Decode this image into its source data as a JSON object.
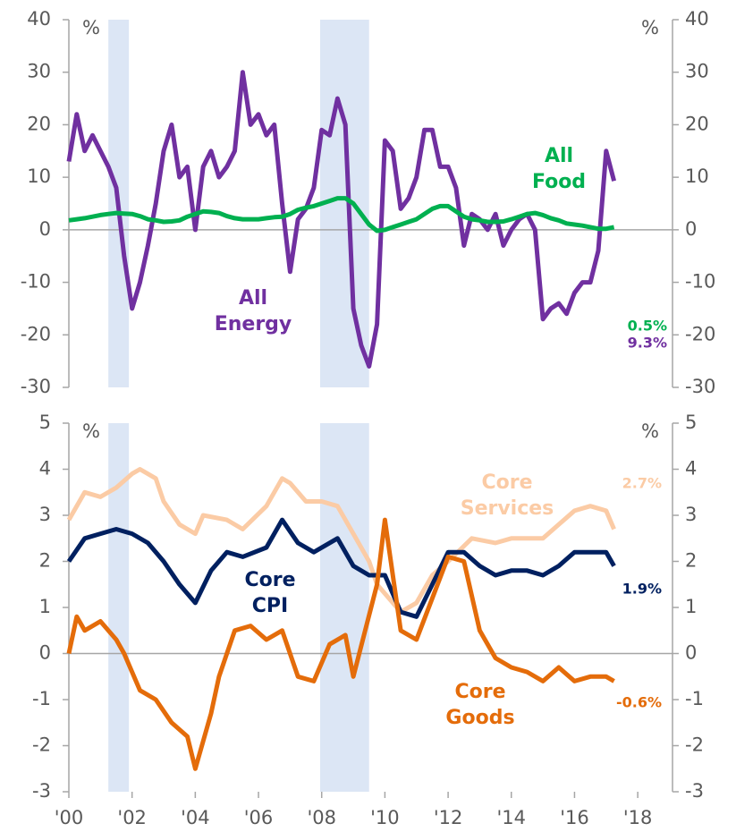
{
  "chart_data": [
    {
      "type": "line",
      "unit": "%",
      "xlim": [
        2000,
        2019.1
      ],
      "ylim": [
        -30,
        40
      ],
      "yticks": [
        -30,
        -20,
        -10,
        0,
        10,
        20,
        30,
        40
      ],
      "y2lim": [
        -30,
        40
      ],
      "y2ticks": [
        -30,
        -20,
        -10,
        0,
        10,
        20,
        30,
        40
      ],
      "shaded_ranges": [
        [
          2001.25,
          2001.9
        ],
        [
          2007.95,
          2009.5
        ]
      ],
      "series": [
        {
          "name": "All Energy",
          "color": "#7030a0",
          "x": [
            2000,
            2000.25,
            2000.5,
            2000.75,
            2001,
            2001.25,
            2001.5,
            2001.75,
            2002,
            2002.25,
            2002.5,
            2002.75,
            2003,
            2003.25,
            2003.5,
            2003.75,
            2004,
            2004.25,
            2004.5,
            2004.75,
            2005,
            2005.25,
            2005.5,
            2005.75,
            2006,
            2006.25,
            2006.5,
            2006.75,
            2007,
            2007.25,
            2007.5,
            2007.75,
            2008,
            2008.25,
            2008.5,
            2008.75,
            2009,
            2009.25,
            2009.5,
            2009.75,
            2010,
            2010.25,
            2010.5,
            2010.75,
            2011,
            2011.25,
            2011.5,
            2011.75,
            2012,
            2012.25,
            2012.5,
            2012.75,
            2013,
            2013.25,
            2013.5,
            2013.75,
            2014,
            2014.25,
            2014.5,
            2014.75,
            2015,
            2015.25,
            2015.5,
            2015.75,
            2016,
            2016.25,
            2016.5,
            2016.75,
            2017,
            2017.25
          ],
          "values": [
            13,
            22,
            15,
            18,
            15,
            12,
            8,
            -5,
            -15,
            -10,
            -3,
            5,
            15,
            20,
            10,
            12,
            0,
            12,
            15,
            10,
            12,
            15,
            30,
            20,
            22,
            18,
            20,
            5,
            -8,
            2,
            4,
            8,
            19,
            18,
            25,
            20,
            -15,
            -22,
            -26,
            -18,
            17,
            15,
            4,
            6,
            10,
            19,
            19,
            12,
            12,
            8,
            -3,
            3,
            2,
            0,
            3,
            -3,
            0,
            2,
            3,
            0,
            -17,
            -15,
            -14,
            -16,
            -12,
            -10,
            -10,
            -4,
            15,
            9.3
          ],
          "value_labels": [
            null,
            null,
            null,
            null,
            null,
            null,
            null,
            null,
            null,
            null,
            null,
            null,
            null,
            null,
            null,
            null,
            null,
            null,
            null,
            null,
            null,
            null,
            null,
            null,
            null,
            null,
            null,
            null,
            null,
            null,
            null,
            null,
            null,
            null,
            null,
            null,
            null,
            null,
            null,
            null,
            null,
            null,
            null,
            null,
            null,
            null,
            null,
            null,
            null,
            null,
            null,
            null,
            null,
            null,
            null,
            null,
            null,
            null,
            null,
            null,
            null,
            null,
            null,
            null,
            null,
            null,
            null,
            null,
            null,
            "9.3%"
          ]
        },
        {
          "name": "All Food",
          "color": "#00b050",
          "x": [
            2000,
            2000.25,
            2000.5,
            2000.75,
            2001,
            2001.25,
            2001.5,
            2001.75,
            2002,
            2002.25,
            2002.5,
            2002.75,
            2003,
            2003.25,
            2003.5,
            2003.75,
            2004,
            2004.25,
            2004.5,
            2004.75,
            2005,
            2005.25,
            2005.5,
            2005.75,
            2006,
            2006.25,
            2006.5,
            2006.75,
            2007,
            2007.25,
            2007.5,
            2007.75,
            2008,
            2008.25,
            2008.5,
            2008.75,
            2009,
            2009.25,
            2009.5,
            2009.75,
            2010,
            2010.25,
            2010.5,
            2010.75,
            2011,
            2011.25,
            2011.5,
            2011.75,
            2012,
            2012.25,
            2012.5,
            2012.75,
            2013,
            2013.25,
            2013.5,
            2013.75,
            2014,
            2014.25,
            2014.5,
            2014.75,
            2015,
            2015.25,
            2015.5,
            2015.75,
            2016,
            2016.25,
            2016.5,
            2016.75,
            2017,
            2017.25
          ],
          "values": [
            1.8,
            2.0,
            2.2,
            2.5,
            2.8,
            3.0,
            3.2,
            3.1,
            3.0,
            2.6,
            2.0,
            1.8,
            1.5,
            1.6,
            1.8,
            2.5,
            3.0,
            3.5,
            3.4,
            3.2,
            2.6,
            2.2,
            2.0,
            2.0,
            2.0,
            2.2,
            2.4,
            2.5,
            3.0,
            3.8,
            4.2,
            4.5,
            5.0,
            5.5,
            6.0,
            6.0,
            5.0,
            3.0,
            1.0,
            -0.2,
            0.0,
            0.5,
            1.0,
            1.5,
            2.0,
            3.0,
            4.0,
            4.5,
            4.5,
            3.5,
            2.5,
            2.0,
            1.8,
            1.5,
            1.5,
            1.6,
            2.0,
            2.5,
            3.0,
            3.2,
            2.8,
            2.2,
            1.8,
            1.2,
            1.0,
            0.8,
            0.5,
            0.2,
            0.2,
            0.5
          ],
          "value_labels": [
            null,
            null,
            null,
            null,
            null,
            null,
            null,
            null,
            null,
            null,
            null,
            null,
            null,
            null,
            null,
            null,
            null,
            null,
            null,
            null,
            null,
            null,
            null,
            null,
            null,
            null,
            null,
            null,
            null,
            null,
            null,
            null,
            null,
            null,
            null,
            null,
            null,
            null,
            null,
            null,
            null,
            null,
            null,
            null,
            null,
            null,
            null,
            null,
            null,
            null,
            null,
            null,
            null,
            null,
            null,
            null,
            null,
            null,
            null,
            null,
            null,
            null,
            null,
            null,
            null,
            null,
            null,
            null,
            null,
            "0.5%"
          ]
        }
      ]
    },
    {
      "type": "line",
      "unit": "%",
      "xlim": [
        2000,
        2019.1
      ],
      "ylim": [
        -3,
        5
      ],
      "yticks": [
        -3,
        -2,
        -1,
        0,
        1,
        2,
        3,
        4,
        5
      ],
      "y2lim": [
        -3,
        5
      ],
      "y2ticks": [
        -3,
        -2,
        -1,
        0,
        1,
        2,
        3,
        4,
        5
      ],
      "xticks": [
        {
          "value": 2000,
          "label": "'00"
        },
        {
          "value": 2002,
          "label": "'02"
        },
        {
          "value": 2004,
          "label": "'04"
        },
        {
          "value": 2006,
          "label": "'06"
        },
        {
          "value": 2008,
          "label": "'08"
        },
        {
          "value": 2010,
          "label": "'10"
        },
        {
          "value": 2012,
          "label": "'12"
        },
        {
          "value": 2014,
          "label": "'14"
        },
        {
          "value": 2016,
          "label": "'16"
        },
        {
          "value": 2018,
          "label": "'18"
        }
      ],
      "shaded_ranges": [
        [
          2001.25,
          2001.9
        ],
        [
          2007.95,
          2009.5
        ]
      ],
      "series": [
        {
          "name": "Core Services",
          "color": "#fbcba5",
          "x": [
            2000,
            2000.5,
            2001,
            2001.5,
            2002,
            2002.25,
            2002.75,
            2003,
            2003.5,
            2004,
            2004.25,
            2005,
            2005.5,
            2006.25,
            2006.75,
            2007,
            2007.5,
            2008,
            2008.5,
            2009,
            2009.5,
            2009.75,
            2010.5,
            2011,
            2011.5,
            2012,
            2012.75,
            2013.5,
            2014,
            2014.5,
            2015,
            2015.5,
            2016,
            2016.5,
            2017,
            2017.25
          ],
          "values": [
            2.9,
            3.5,
            3.4,
            3.6,
            3.9,
            4.0,
            3.8,
            3.3,
            2.8,
            2.6,
            3.0,
            2.9,
            2.7,
            3.2,
            3.8,
            3.7,
            3.3,
            3.3,
            3.2,
            2.6,
            2.0,
            1.5,
            0.9,
            1.1,
            1.7,
            2.0,
            2.5,
            2.4,
            2.5,
            2.5,
            2.5,
            2.8,
            3.1,
            3.2,
            3.1,
            2.7
          ],
          "value_labels": [
            null,
            null,
            null,
            null,
            null,
            null,
            null,
            null,
            null,
            null,
            null,
            null,
            null,
            null,
            null,
            null,
            null,
            null,
            null,
            null,
            null,
            null,
            null,
            null,
            null,
            null,
            null,
            null,
            null,
            null,
            null,
            null,
            null,
            null,
            null,
            "2.7%"
          ]
        },
        {
          "name": "Core CPI",
          "color": "#002060",
          "x": [
            2000,
            2000.5,
            2001,
            2001.5,
            2002,
            2002.5,
            2003,
            2003.5,
            2004,
            2004.5,
            2005,
            2005.5,
            2006.25,
            2006.75,
            2007.25,
            2007.75,
            2008.5,
            2009,
            2009.5,
            2010,
            2010.5,
            2011,
            2011.5,
            2012,
            2012.5,
            2013,
            2013.5,
            2014,
            2014.5,
            2015,
            2015.5,
            2016,
            2016.5,
            2017,
            2017.25
          ],
          "values": [
            2.0,
            2.5,
            2.6,
            2.7,
            2.6,
            2.4,
            2.0,
            1.5,
            1.1,
            1.8,
            2.2,
            2.1,
            2.3,
            2.9,
            2.4,
            2.2,
            2.5,
            1.9,
            1.7,
            1.7,
            0.9,
            0.8,
            1.5,
            2.2,
            2.2,
            1.9,
            1.7,
            1.8,
            1.8,
            1.7,
            1.9,
            2.2,
            2.2,
            2.2,
            1.9
          ],
          "value_labels": [
            null,
            null,
            null,
            null,
            null,
            null,
            null,
            null,
            null,
            null,
            null,
            null,
            null,
            null,
            null,
            null,
            null,
            null,
            null,
            null,
            null,
            null,
            null,
            null,
            null,
            null,
            null,
            null,
            null,
            null,
            null,
            null,
            null,
            null,
            "1.9%"
          ]
        },
        {
          "name": "Core Goods",
          "color": "#e46c0a",
          "x": [
            2000,
            2000.25,
            2000.5,
            2001,
            2001.5,
            2001.75,
            2002.25,
            2002.75,
            2003.25,
            2003.75,
            2004,
            2004.5,
            2004.75,
            2005.25,
            2005.75,
            2006.25,
            2006.75,
            2007.25,
            2007.75,
            2008.25,
            2008.75,
            2009,
            2009.75,
            2010,
            2010.5,
            2011,
            2011.5,
            2012,
            2012.5,
            2013,
            2013.5,
            2014,
            2014.5,
            2015,
            2015.5,
            2016,
            2016.5,
            2017,
            2017.25
          ],
          "values": [
            0,
            0.8,
            0.5,
            0.7,
            0.3,
            0,
            -0.8,
            -1.0,
            -1.5,
            -1.8,
            -2.5,
            -1.3,
            -0.5,
            0.5,
            0.6,
            0.3,
            0.5,
            -0.5,
            -0.6,
            0.2,
            0.4,
            -0.5,
            1.5,
            2.9,
            0.5,
            0.3,
            1.2,
            2.1,
            2.0,
            0.5,
            -0.1,
            -0.3,
            -0.4,
            -0.6,
            -0.3,
            -0.6,
            -0.5,
            -0.5,
            -0.6
          ],
          "value_labels": [
            null,
            null,
            null,
            null,
            null,
            null,
            null,
            null,
            null,
            null,
            null,
            null,
            null,
            null,
            null,
            null,
            null,
            null,
            null,
            null,
            null,
            null,
            null,
            null,
            null,
            null,
            null,
            null,
            null,
            null,
            null,
            null,
            null,
            null,
            null,
            null,
            null,
            null,
            "-0.6%"
          ]
        }
      ]
    }
  ]
}
